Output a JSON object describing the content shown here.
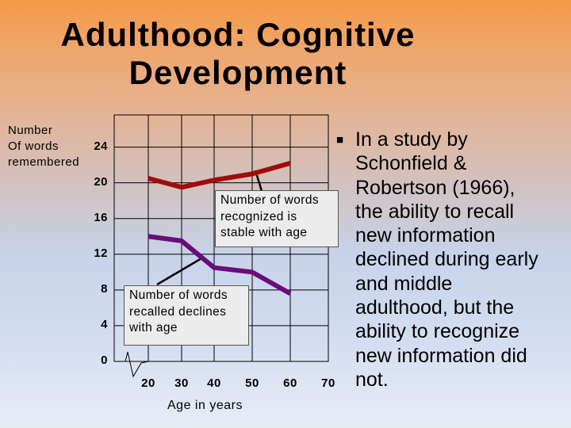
{
  "title": {
    "line1": "Adulthood: Cognitive",
    "line2": "Development"
  },
  "chart_data": {
    "type": "line",
    "ylabel": [
      "Number",
      "Of words",
      "remembered"
    ],
    "xlabel": "Age in years",
    "x": [
      20,
      30,
      40,
      50,
      60
    ],
    "xticks": [
      "20",
      "30",
      "40",
      "50",
      "60",
      "70"
    ],
    "yticks": [
      "0",
      "4",
      "8",
      "12",
      "16",
      "20",
      "24"
    ],
    "ylim": [
      0,
      27.6
    ],
    "grid": true,
    "series": [
      {
        "key": "recognized",
        "color": "#a00c0c",
        "values": [
          20.5,
          19.5,
          20.3,
          21.0,
          22.2
        ]
      },
      {
        "key": "recalled",
        "color": "#6a0c7a",
        "values": [
          14.0,
          13.5,
          10.5,
          10.0,
          7.6
        ]
      }
    ],
    "annotations": [
      {
        "key": "recognized",
        "lines": [
          "Number of words",
          "recognized is",
          "stable with age"
        ]
      },
      {
        "key": "recalled",
        "lines": [
          "Number of words",
          "recalled declines",
          "with age"
        ]
      }
    ]
  },
  "bullet": {
    "icon": "square-bullet",
    "text": "In a study by Schonfield & Robertson (1966), the ability to recall new information declined during early and middle adulthood, but the ability to recognize new information did not.",
    "lines": [
      "In a study by",
      "Schonfield &",
      "Robertson (1966),",
      "the ability to recall",
      "new information",
      "declined during early",
      "and middle",
      "adulthood, but the",
      "ability to recognize",
      "new information did",
      "not."
    ]
  }
}
